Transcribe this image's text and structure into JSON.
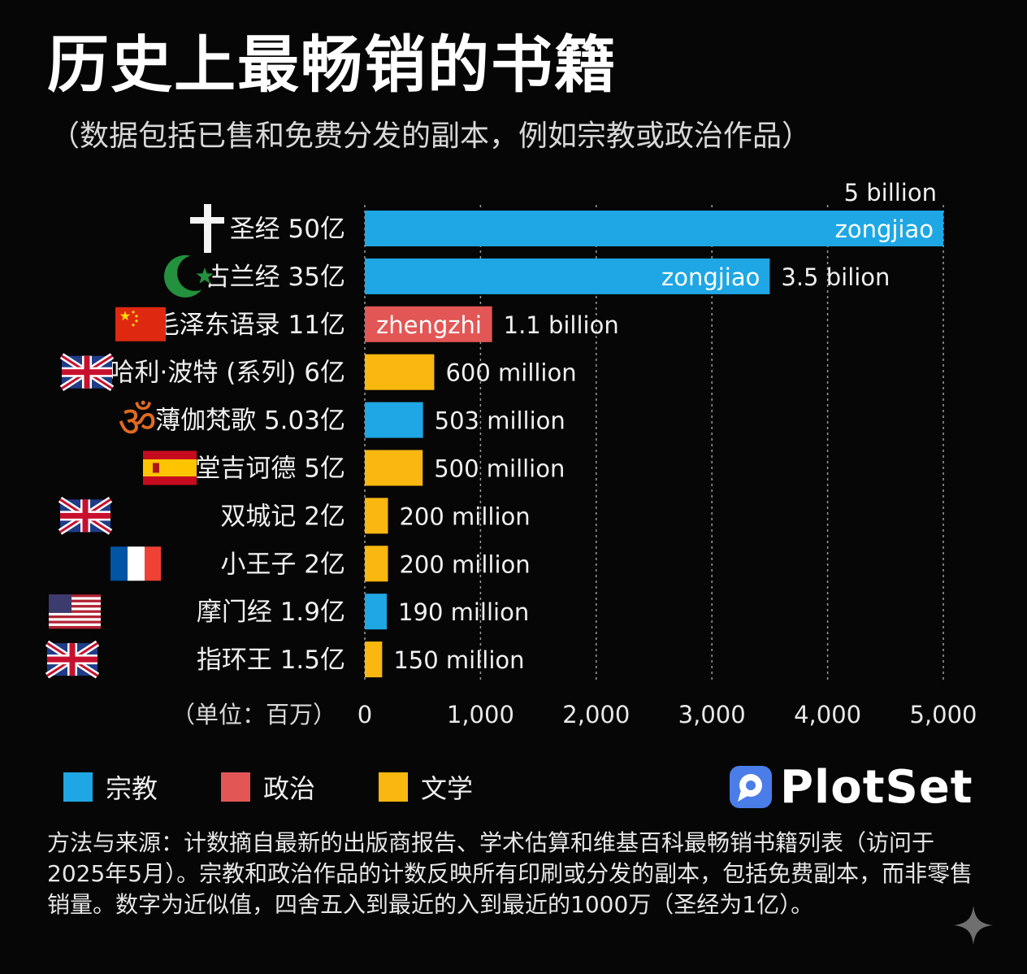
{
  "title": "历史上最畅销的书籍",
  "subtitle": "（数据包括已售和免费分发的副本，例如宗教或政治作品）",
  "chart_data": {
    "type": "bar",
    "orientation": "horizontal",
    "categories": [
      "圣经 50亿",
      "古兰经 35亿",
      "毛泽东语录 11亿",
      "哈利·波特 (系列) 6亿",
      "薄伽梵歌 5.03亿",
      "堂吉诃德 5亿",
      "双城记 2亿",
      "小王子 2亿",
      "摩门经 1.9亿",
      "指环王 1.5亿"
    ],
    "values": [
      5000,
      3500,
      1100,
      600,
      503,
      500,
      200,
      200,
      190,
      150
    ],
    "bar_groups": [
      "宗教",
      "宗教",
      "政治",
      "文学",
      "宗教",
      "文学",
      "文学",
      "文学",
      "宗教",
      "文学"
    ],
    "icons": [
      "cross-icon",
      "crescent-star-icon",
      "china-flag-icon",
      "uk-flag-icon",
      "om-icon",
      "spain-flag-icon",
      "uk-flag-icon",
      "france-flag-icon",
      "usa-flag-icon",
      "uk-flag-icon"
    ],
    "inside_labels": [
      "zongjiao",
      "zongjiao",
      "zhengzhi",
      "",
      "",
      "",
      "",
      "",
      "",
      ""
    ],
    "value_labels": [
      "5 billion",
      "3.5 bilion",
      "1.1 billion",
      "600 million",
      "503 million",
      "500 million",
      "200 million",
      "200 million",
      "190 million",
      "150 million"
    ],
    "value_label_positions": [
      "above",
      "outside",
      "outside",
      "outside",
      "outside",
      "outside",
      "outside",
      "outside",
      "outside",
      "outside"
    ],
    "xlabel": "（单位：百万）",
    "xlim": [
      0,
      5000
    ],
    "xticks": [
      0,
      1000,
      2000,
      3000,
      4000,
      5000
    ],
    "xtick_labels": [
      "0",
      "1,000",
      "2,000",
      "3,000",
      "4,000",
      "5,000"
    ],
    "grid": true,
    "legend": [
      {
        "name": "宗教",
        "color": "#1ea7e4"
      },
      {
        "name": "政治",
        "color": "#e25656"
      },
      {
        "name": "文学",
        "color": "#f9b70f"
      }
    ],
    "legend_position": "bottom-left"
  },
  "brand": {
    "name": "PlotSet"
  },
  "footnote": "方法与来源：计数摘自最新的出版商报告、学术估算和维基百科最畅销书籍列表（访问于2025年5月）。宗教和政治作品的计数反映所有印刷或分发的副本，包括免费副本，而非零售销量。数字为近似值，四舍五入到最近的入到最近的1000万（圣经为1亿）。"
}
